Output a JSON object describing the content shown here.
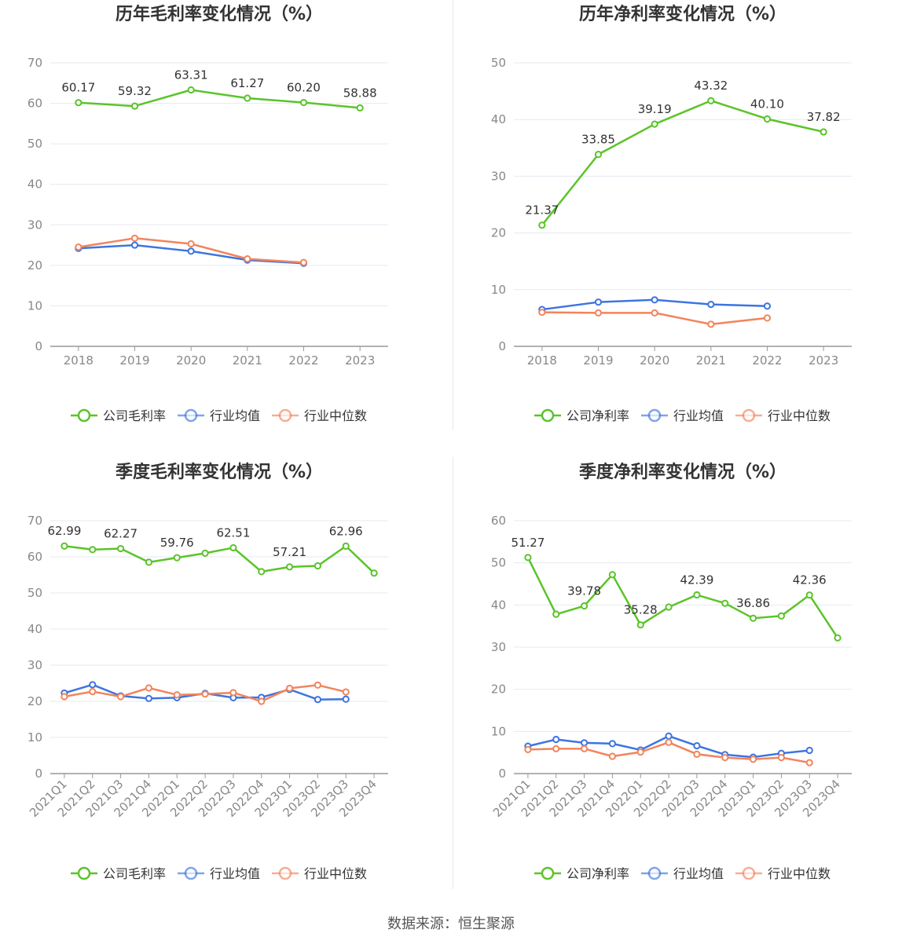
{
  "source_text": "数据来源：恒生聚源",
  "colors": {
    "company": "#5bc42a",
    "avg": "#3d74e0",
    "median": "#f2845c",
    "grid": "#e6e9f2",
    "axis": "#999999"
  },
  "chart_data": [
    {
      "type": "line",
      "title": "历年毛利率变化情况（%）",
      "categories": [
        "2018",
        "2019",
        "2020",
        "2021",
        "2022",
        "2023"
      ],
      "ylim": [
        0,
        70
      ],
      "yticks": [
        0,
        10,
        20,
        30,
        40,
        50,
        60,
        70
      ],
      "grid": true,
      "legend_position": "bottom-center",
      "series": [
        {
          "name": "公司毛利率",
          "color": "#5bc42a",
          "values": [
            60.17,
            59.32,
            63.31,
            61.27,
            60.2,
            58.88
          ],
          "labels": [
            "60.17",
            "59.32",
            "63.31",
            "61.27",
            "60.20",
            "58.88"
          ]
        },
        {
          "name": "行业均值",
          "color": "#3d74e0",
          "values": [
            24.2,
            25.0,
            23.5,
            21.3,
            20.5,
            null
          ]
        },
        {
          "name": "行业中位数",
          "color": "#f2845c",
          "values": [
            24.5,
            26.7,
            25.3,
            21.6,
            20.7,
            null
          ]
        }
      ]
    },
    {
      "type": "line",
      "title": "历年净利率变化情况（%）",
      "categories": [
        "2018",
        "2019",
        "2020",
        "2021",
        "2022",
        "2023"
      ],
      "ylim": [
        0,
        50
      ],
      "yticks": [
        0,
        10,
        20,
        30,
        40,
        50
      ],
      "grid": true,
      "legend_position": "bottom-center",
      "series": [
        {
          "name": "公司净利率",
          "color": "#5bc42a",
          "values": [
            21.37,
            33.85,
            39.19,
            43.32,
            40.1,
            37.82
          ],
          "labels": [
            "21.37",
            "33.85",
            "39.19",
            "43.32",
            "40.10",
            "37.82"
          ]
        },
        {
          "name": "行业均值",
          "color": "#3d74e0",
          "values": [
            6.5,
            7.8,
            8.2,
            7.4,
            7.1,
            null
          ]
        },
        {
          "name": "行业中位数",
          "color": "#f2845c",
          "values": [
            6.0,
            5.9,
            5.9,
            3.9,
            5.0,
            null
          ]
        }
      ]
    },
    {
      "type": "line",
      "title": "季度毛利率变化情况（%）",
      "categories": [
        "2021Q1",
        "2021Q2",
        "2021Q3",
        "2021Q4",
        "2022Q1",
        "2022Q2",
        "2022Q3",
        "2022Q4",
        "2023Q1",
        "2023Q2",
        "2023Q3",
        "2023Q4"
      ],
      "ylim": [
        0,
        70
      ],
      "yticks": [
        0,
        10,
        20,
        30,
        40,
        50,
        60,
        70
      ],
      "grid": true,
      "legend_position": "bottom-center",
      "series": [
        {
          "name": "公司毛利率",
          "color": "#5bc42a",
          "values": [
            62.99,
            62.0,
            62.27,
            58.5,
            59.76,
            61.0,
            62.51,
            55.9,
            57.21,
            57.5,
            62.96,
            55.5
          ],
          "labels": [
            "62.99",
            "",
            "62.27",
            "",
            "59.76",
            "",
            "62.51",
            "",
            "57.21",
            "",
            "62.96",
            ""
          ]
        },
        {
          "name": "行业均值",
          "color": "#3d74e0",
          "values": [
            22.3,
            24.6,
            21.5,
            20.8,
            21.0,
            22.2,
            21.0,
            21.1,
            23.3,
            20.5,
            20.6,
            null
          ]
        },
        {
          "name": "行业中位数",
          "color": "#f2845c",
          "values": [
            21.3,
            22.7,
            21.3,
            23.7,
            21.8,
            22.0,
            22.4,
            20.0,
            23.6,
            24.5,
            22.6,
            null
          ]
        }
      ]
    },
    {
      "type": "line",
      "title": "季度净利率变化情况（%）",
      "categories": [
        "2021Q1",
        "2021Q2",
        "2021Q3",
        "2021Q4",
        "2022Q1",
        "2022Q2",
        "2022Q3",
        "2022Q4",
        "2023Q1",
        "2023Q2",
        "2023Q3",
        "2023Q4"
      ],
      "ylim": [
        0,
        60
      ],
      "yticks": [
        0,
        10,
        20,
        30,
        40,
        50,
        60
      ],
      "grid": true,
      "legend_position": "bottom-center",
      "series": [
        {
          "name": "公司净利率",
          "color": "#5bc42a",
          "values": [
            51.27,
            37.8,
            39.78,
            47.2,
            35.28,
            39.5,
            42.39,
            40.4,
            36.86,
            37.4,
            42.36,
            32.2
          ],
          "labels": [
            "51.27",
            "",
            "39.78",
            "",
            "35.28",
            "",
            "42.39",
            "",
            "36.86",
            "",
            "42.36",
            ""
          ]
        },
        {
          "name": "行业均值",
          "color": "#3d74e0",
          "values": [
            6.5,
            8.1,
            7.3,
            7.1,
            5.6,
            8.9,
            6.6,
            4.5,
            3.9,
            4.8,
            5.5,
            null
          ]
        },
        {
          "name": "行业中位数",
          "color": "#f2845c",
          "values": [
            5.7,
            5.9,
            5.9,
            4.1,
            5.1,
            7.4,
            4.6,
            3.8,
            3.4,
            3.8,
            2.6,
            null
          ]
        }
      ]
    }
  ]
}
